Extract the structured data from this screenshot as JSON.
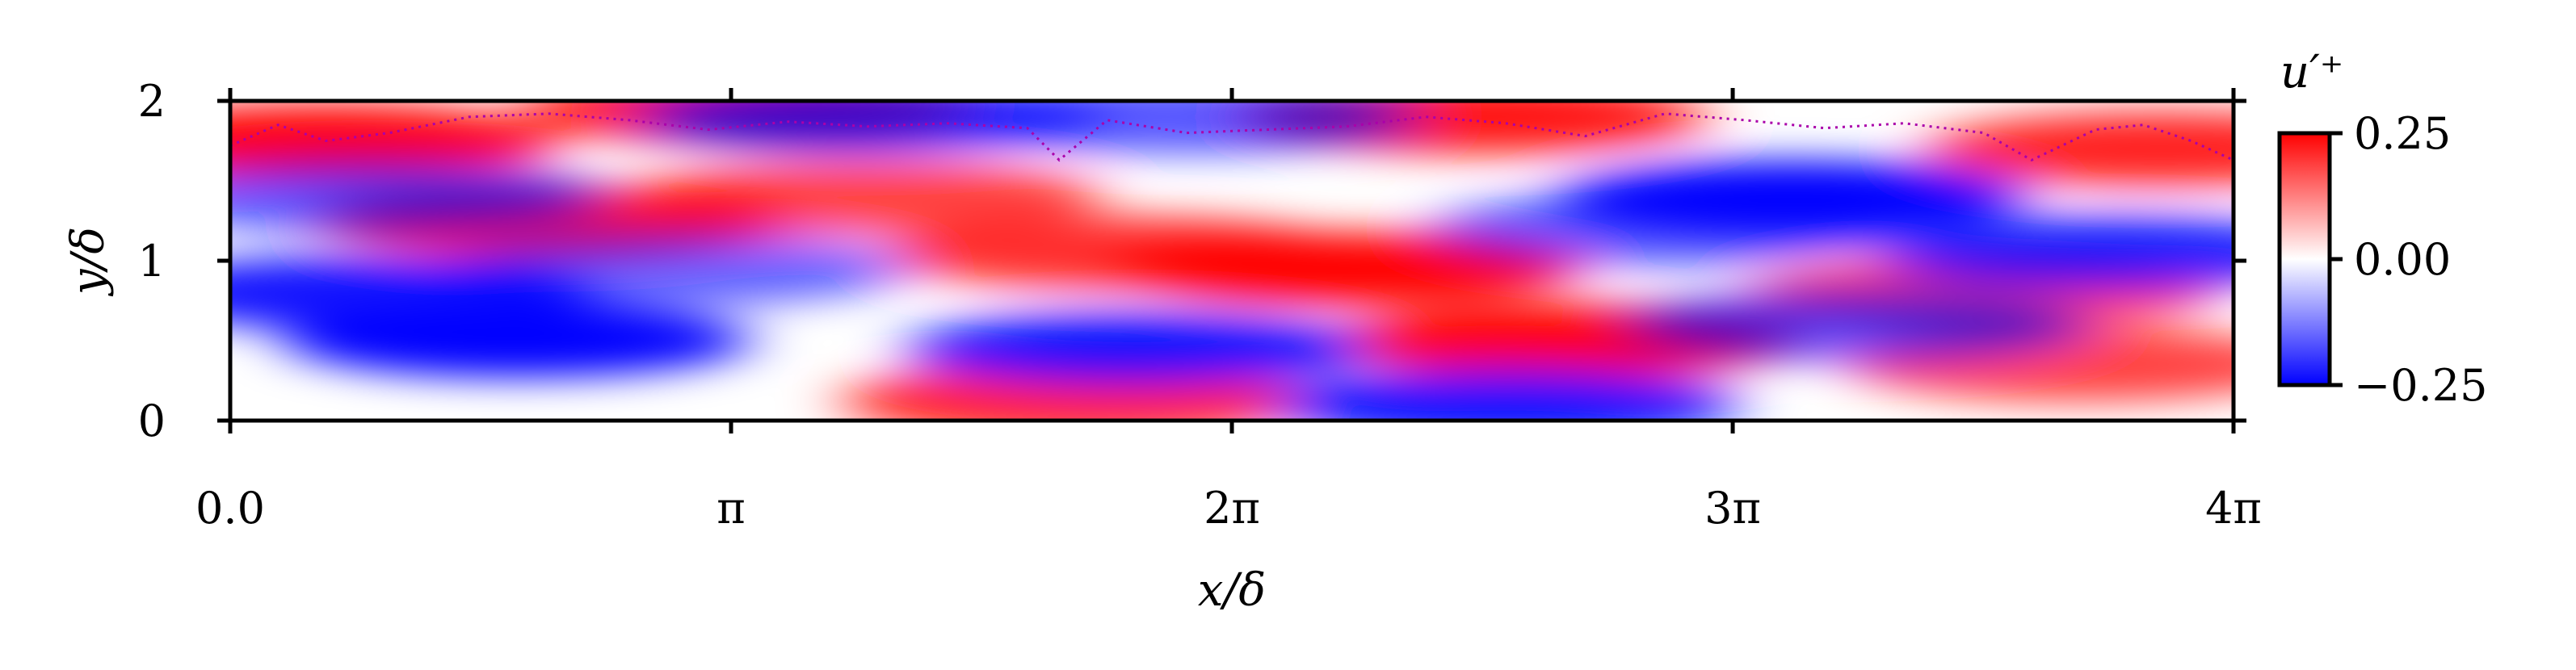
{
  "chart_data": {
    "type": "heatmap",
    "title": "",
    "xlabel": "x/δ",
    "ylabel": "y/δ",
    "xlim": [
      0,
      12.566
    ],
    "ylim": [
      0,
      2
    ],
    "x_ticks": [
      {
        "value": 0,
        "label": "0.0"
      },
      {
        "value": 3.1416,
        "label": "π"
      },
      {
        "value": 6.2832,
        "label": "2π"
      },
      {
        "value": 9.4248,
        "label": "3π"
      },
      {
        "value": 12.566,
        "label": "4π"
      }
    ],
    "y_ticks": [
      {
        "value": 0,
        "label": "0"
      },
      {
        "value": 1,
        "label": "1"
      },
      {
        "value": 2,
        "label": "2"
      }
    ],
    "colorbar": {
      "label": "u′⁺",
      "range": [
        -0.25,
        0.25
      ],
      "ticks": [
        {
          "value": 0.25,
          "label": "0.25"
        },
        {
          "value": 0.0,
          "label": "0.00"
        },
        {
          "value": -0.25,
          "label": "−0.25"
        }
      ],
      "colormap": "bwr",
      "colors": {
        "low": "#0000ff",
        "mid": "#ffffff",
        "high": "#ff0000"
      }
    },
    "field_features": [
      {
        "x": 0.6,
        "y": 1.75,
        "value": 0.25
      },
      {
        "x": 2.0,
        "y": 1.25,
        "value": 0.22
      },
      {
        "x": 3.3,
        "y": 1.95,
        "value": 0.22
      },
      {
        "x": 4.0,
        "y": 1.4,
        "value": 0.15
      },
      {
        "x": 7.0,
        "y": 0.95,
        "value": 0.25
      },
      {
        "x": 5.6,
        "y": 1.05,
        "value": 0.18
      },
      {
        "x": 8.4,
        "y": 0.5,
        "value": 0.25
      },
      {
        "x": 7.8,
        "y": 1.9,
        "value": 0.22
      },
      {
        "x": 12.1,
        "y": 1.7,
        "value": 0.2
      },
      {
        "x": 11.0,
        "y": 0.8,
        "value": 0.15
      },
      {
        "x": 5.3,
        "y": 0.12,
        "value": 0.2
      },
      {
        "x": 11.6,
        "y": 0.35,
        "value": 0.15
      },
      {
        "x": 0.8,
        "y": 0.8,
        "value": -0.22
      },
      {
        "x": 1.8,
        "y": 0.5,
        "value": -0.25
      },
      {
        "x": 0.9,
        "y": 1.4,
        "value": -0.12
      },
      {
        "x": 5.7,
        "y": 0.45,
        "value": -0.22
      },
      {
        "x": 9.8,
        "y": 1.4,
        "value": -0.25
      },
      {
        "x": 11.8,
        "y": 1.05,
        "value": -0.2
      },
      {
        "x": 9.0,
        "y": 1.2,
        "value": -0.12
      },
      {
        "x": 8.0,
        "y": 0.1,
        "value": -0.22
      },
      {
        "x": 4.0,
        "y": 1.9,
        "value": -0.15
      },
      {
        "x": 6.0,
        "y": 1.9,
        "value": -0.12
      },
      {
        "x": 10.2,
        "y": 0.6,
        "value": -0.12
      },
      {
        "x": 2.8,
        "y": 0.95,
        "value": -0.1
      }
    ],
    "interface_line": {
      "style": "dotted",
      "color": "#aa00aa",
      "x": [
        0.0,
        0.3,
        0.6,
        1.0,
        1.5,
        2.0,
        2.5,
        3.0,
        3.5,
        4.0,
        4.5,
        5.0,
        5.2,
        5.5,
        6.0,
        6.5,
        7.0,
        7.5,
        8.0,
        8.5,
        9.0,
        9.5,
        10.0,
        10.5,
        11.0,
        11.3,
        11.7,
        12.0,
        12.3,
        12.566
      ],
      "y": [
        1.72,
        1.85,
        1.75,
        1.8,
        1.9,
        1.92,
        1.88,
        1.82,
        1.87,
        1.84,
        1.86,
        1.83,
        1.63,
        1.88,
        1.8,
        1.82,
        1.84,
        1.9,
        1.86,
        1.78,
        1.92,
        1.88,
        1.83,
        1.86,
        1.8,
        1.63,
        1.82,
        1.85,
        1.75,
        1.63
      ]
    }
  }
}
